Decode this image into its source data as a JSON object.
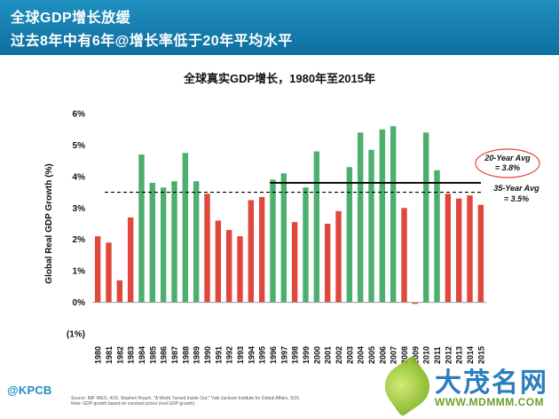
{
  "header": {
    "title": "全球GDP增长放缓",
    "subtitle": "过去8年中有6年@增长率低于20年平均水平"
  },
  "chart_data": {
    "type": "bar",
    "title": "全球真实GDP增长，1980年至2015年",
    "xlabel": "",
    "ylabel": "Global Real GDP Growth (%)",
    "ylim": [
      -1,
      6
    ],
    "yticks": [
      -1,
      0,
      1,
      2,
      3,
      4,
      5,
      6
    ],
    "ytick_labels": [
      "(1%)",
      "0%",
      "1%",
      "2%",
      "3%",
      "4%",
      "5%",
      "6%"
    ],
    "grid": false,
    "categories": [
      "1980",
      "1981",
      "1982",
      "1983",
      "1984",
      "1985",
      "1986",
      "1987",
      "1988",
      "1989",
      "1990",
      "1991",
      "1992",
      "1993",
      "1994",
      "1995",
      "1996",
      "1997",
      "1998",
      "1999",
      "2000",
      "2001",
      "2002",
      "2003",
      "2004",
      "2005",
      "2006",
      "2007",
      "2008",
      "2009",
      "2010",
      "2011",
      "2012",
      "2013",
      "2014",
      "2015"
    ],
    "values": [
      2.1,
      1.9,
      0.7,
      2.7,
      4.7,
      3.8,
      3.65,
      3.85,
      4.75,
      3.85,
      3.45,
      2.6,
      2.3,
      2.1,
      3.25,
      3.35,
      3.9,
      4.1,
      2.55,
      3.65,
      4.8,
      2.5,
      2.9,
      4.3,
      5.4,
      4.85,
      5.5,
      5.6,
      3.0,
      -0.05,
      5.4,
      4.2,
      3.45,
      3.3,
      3.4,
      3.1
    ],
    "colors": {
      "above_avg": "#4caf6e",
      "below_avg": "#e0483e",
      "axis": "#999999",
      "line": "#000000"
    },
    "bar_color_group": [
      "below",
      "below",
      "below",
      "below",
      "above",
      "above",
      "above",
      "above",
      "above",
      "above",
      "below",
      "below",
      "below",
      "below",
      "below",
      "below",
      "above",
      "above",
      "below",
      "above",
      "above",
      "below",
      "below",
      "above",
      "above",
      "above",
      "above",
      "above",
      "below",
      "below",
      "above",
      "above",
      "below",
      "below",
      "below",
      "below"
    ],
    "reference_lines": [
      {
        "label_line1": "20-Year Avg",
        "label_line2": "= 3.8%",
        "value": 3.8,
        "style": "solid",
        "from": "1996",
        "to": "2015"
      },
      {
        "label_line1": "35-Year Avg",
        "label_line2": "= 3.5%",
        "value": 3.5,
        "style": "dashed",
        "from": "1980",
        "to": "2015"
      }
    ]
  },
  "footer": {
    "logo": "@KPCB",
    "source_line1": "Source: IMF WEO, 4/16. Stephen Roach, \"A World Turned Inside Out,\" Yale Jackson Institute for Global Affairs, 5/16.",
    "source_line2": "Note: GDP growth based on constant prices (real GDP growth)."
  },
  "watermark": {
    "title": "大茂名网",
    "url": "WWW.MDMMM.COM"
  }
}
